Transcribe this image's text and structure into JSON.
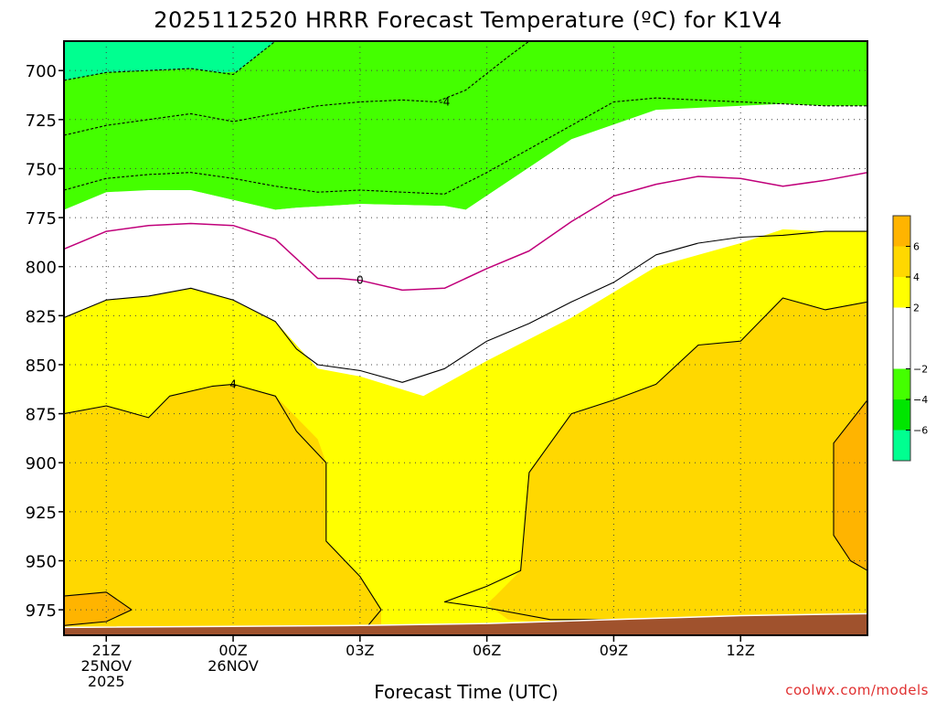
{
  "title": "2025112520 HRRR Forecast Temperature (ºC) for K1V4",
  "credit": "coolwx.com/models",
  "chart_data": {
    "type": "heatmap",
    "title": "2025112520 HRRR Forecast Temperature (ºC) for K1V4",
    "xlabel": "Forecast Time (UTC)",
    "ylabel": "",
    "x_range_hours": [
      -1,
      18
    ],
    "y_range_hpa": [
      685,
      988
    ],
    "y_reversed": true,
    "grid": true,
    "legend": "colorbar-right",
    "x_ticks": [
      {
        "hour": 0,
        "lines": [
          "21Z",
          "25NOV",
          "2025"
        ]
      },
      {
        "hour": 3,
        "lines": [
          "00Z",
          "26NOV"
        ]
      },
      {
        "hour": 6,
        "lines": [
          "03Z"
        ]
      },
      {
        "hour": 9,
        "lines": [
          "06Z"
        ]
      },
      {
        "hour": 12,
        "lines": [
          "09Z"
        ]
      },
      {
        "hour": 15,
        "lines": [
          "12Z"
        ]
      }
    ],
    "y_ticks": [
      700,
      725,
      750,
      775,
      800,
      825,
      850,
      875,
      900,
      925,
      950,
      975
    ],
    "colorbar": {
      "levels": [
        -8,
        -6,
        -4,
        -2,
        2,
        4,
        6,
        8
      ],
      "tick_labels": [
        "6",
        "4",
        "2",
        "−2",
        "−4",
        "−6"
      ],
      "tick_values": [
        6,
        4,
        2,
        -2,
        -4,
        -6
      ],
      "colors": [
        {
          "range": [
            -8,
            -6
          ],
          "color": "#00ff90"
        },
        {
          "range": [
            -6,
            -4
          ],
          "color": "#00e600"
        },
        {
          "range": [
            -4,
            -2
          ],
          "color": "#44ff00"
        },
        {
          "range": [
            -2,
            2
          ],
          "color": "#ffffff"
        },
        {
          "range": [
            2,
            4
          ],
          "color": "#ffff00"
        },
        {
          "range": [
            4,
            6
          ],
          "color": "#ffd800"
        },
        {
          "range": [
            6,
            8
          ],
          "color": "#ffb400"
        }
      ]
    },
    "contour_labels": [
      {
        "text": "-4",
        "hour": 8.0,
        "p": 716
      },
      {
        "text": "0",
        "hour": 6.0,
        "p": 807
      },
      {
        "text": "4",
        "hour": 3.0,
        "p": 860
      }
    ],
    "regions": [
      {
        "name": "cold-6-to-8",
        "color": "#00ff90",
        "points": [
          [
            -1,
            685
          ],
          [
            4.0,
            685
          ],
          [
            3.0,
            702
          ],
          [
            2.0,
            699
          ],
          [
            0,
            701
          ],
          [
            -1,
            705
          ]
        ]
      },
      {
        "name": "cold-4-to-6",
        "color": "#44ff00",
        "points": [
          [
            -1,
            705
          ],
          [
            0,
            701
          ],
          [
            2.0,
            699
          ],
          [
            3.0,
            702
          ],
          [
            4.0,
            685
          ],
          [
            17.0,
            685
          ],
          [
            16.0,
            688
          ],
          [
            15.0,
            686
          ],
          [
            14.0,
            687
          ],
          [
            13.0,
            686
          ],
          [
            17.0,
            685
          ],
          [
            18,
            685
          ],
          [
            18,
            718
          ],
          [
            17,
            718
          ],
          [
            16,
            717
          ],
          [
            15,
            718
          ],
          [
            13,
            720
          ],
          [
            11.0,
            735
          ],
          [
            8.5,
            771
          ],
          [
            8.0,
            769
          ],
          [
            6.0,
            768
          ],
          [
            4.5,
            770
          ],
          [
            4.0,
            771
          ],
          [
            3.0,
            766
          ],
          [
            2.0,
            761
          ],
          [
            1.0,
            761
          ],
          [
            0,
            762
          ],
          [
            -1,
            771
          ]
        ]
      },
      {
        "name": "cold-2-to-4",
        "color": "#44ff00",
        "points": [
          [
            -1,
            705
          ],
          [
            18,
            685
          ],
          [
            18,
            718
          ],
          [
            -1,
            771
          ]
        ]
      },
      {
        "name": "neutral",
        "color": "#ffffff",
        "points": [
          [
            -1,
            771
          ],
          [
            0,
            762
          ],
          [
            1.0,
            761
          ],
          [
            2.0,
            761
          ],
          [
            3.0,
            766
          ],
          [
            4.0,
            771
          ],
          [
            4.5,
            770
          ],
          [
            6.0,
            768
          ],
          [
            8.0,
            769
          ],
          [
            8.5,
            771
          ],
          [
            11.0,
            735
          ],
          [
            13,
            720
          ],
          [
            15,
            718
          ],
          [
            16,
            717
          ],
          [
            17,
            718
          ],
          [
            18,
            718
          ],
          [
            18,
            782
          ],
          [
            17,
            782
          ],
          [
            16,
            781
          ],
          [
            15,
            788
          ],
          [
            13,
            800
          ],
          [
            11.0,
            826
          ],
          [
            9.0,
            848
          ],
          [
            7.5,
            866
          ],
          [
            6.0,
            856
          ],
          [
            4.0,
            851
          ],
          [
            3.0,
            844
          ],
          [
            2.0,
            828
          ],
          [
            1.0,
            815
          ],
          [
            0,
            817
          ],
          [
            -1,
            826
          ]
        ]
      },
      {
        "name": "warm-2-to-4",
        "color": "#ffff00",
        "points": [
          [
            -1,
            826
          ],
          [
            0,
            817
          ],
          [
            1.0,
            815
          ],
          [
            2.0,
            811
          ],
          [
            3.0,
            817
          ],
          [
            4.0,
            828
          ],
          [
            5.0,
            852
          ],
          [
            6.0,
            856
          ],
          [
            7.5,
            866
          ],
          [
            9.0,
            848
          ],
          [
            11.0,
            826
          ],
          [
            13,
            800
          ],
          [
            15,
            788
          ],
          [
            16,
            781
          ],
          [
            17,
            782
          ],
          [
            18,
            782
          ],
          [
            18,
            988
          ],
          [
            -1,
            988
          ]
        ]
      },
      {
        "name": "warm-4-to-6-left",
        "color": "#ffd800",
        "points": [
          [
            -1,
            875
          ],
          [
            0,
            871
          ],
          [
            1.0,
            877
          ],
          [
            1.5,
            866
          ],
          [
            2.5,
            861
          ],
          [
            3.0,
            860
          ],
          [
            4.0,
            866
          ],
          [
            5.0,
            888
          ],
          [
            5.2,
            900
          ],
          [
            5.2,
            940
          ],
          [
            6.0,
            958
          ],
          [
            6.5,
            975
          ],
          [
            6.5,
            988
          ],
          [
            -1,
            988
          ]
        ]
      },
      {
        "name": "warm-4-to-6-right",
        "color": "#ffd800",
        "points": [
          [
            18,
            818
          ],
          [
            17,
            822
          ],
          [
            16.0,
            816
          ],
          [
            15.0,
            838
          ],
          [
            14.0,
            840
          ],
          [
            13.0,
            860
          ],
          [
            12.0,
            868
          ],
          [
            11.0,
            875
          ],
          [
            10.0,
            905
          ],
          [
            9.8,
            955
          ],
          [
            9.2,
            968
          ],
          [
            9.0,
            972
          ],
          [
            9.5,
            980
          ],
          [
            10.5,
            982
          ],
          [
            12.0,
            980
          ],
          [
            12.8,
            982
          ],
          [
            14.5,
            985
          ],
          [
            18,
            985
          ]
        ]
      },
      {
        "name": "warm-6-to-8-right",
        "color": "#ffb400",
        "points": [
          [
            18,
            868
          ],
          [
            17.2,
            890
          ],
          [
            17.2,
            937
          ],
          [
            17.6,
            950
          ],
          [
            18,
            955
          ]
        ]
      },
      {
        "name": "warm-6-to-8-left",
        "color": "#ffb400",
        "points": [
          [
            -1,
            968
          ],
          [
            0,
            966
          ],
          [
            0.6,
            975
          ],
          [
            0,
            981
          ],
          [
            -1,
            983
          ]
        ]
      }
    ],
    "contours": [
      {
        "value": -4,
        "color": "#000000",
        "dashed": true,
        "points": [
          [
            -1,
            705
          ],
          [
            0,
            701
          ],
          [
            2.0,
            699
          ],
          [
            3.0,
            702
          ],
          [
            4.0,
            685
          ]
        ]
      },
      {
        "value": -4,
        "color": "#000000",
        "dashed": true,
        "points": [
          [
            -1,
            733
          ],
          [
            0,
            728
          ],
          [
            1.0,
            725
          ],
          [
            2.0,
            722
          ],
          [
            3.0,
            726
          ],
          [
            4.0,
            722
          ],
          [
            5.0,
            718
          ],
          [
            6.0,
            716
          ],
          [
            7.0,
            715
          ],
          [
            7.8,
            716
          ],
          [
            8.5,
            710
          ],
          [
            9.5,
            693
          ],
          [
            10.0,
            685
          ]
        ]
      },
      {
        "value": -2,
        "color": "#000000",
        "dashed": true,
        "points": [
          [
            -1,
            761
          ],
          [
            0,
            755
          ],
          [
            1.0,
            753
          ],
          [
            2.0,
            752
          ],
          [
            3.0,
            755
          ],
          [
            4.0,
            759
          ],
          [
            5.0,
            762
          ],
          [
            6.0,
            761
          ],
          [
            7.0,
            762
          ],
          [
            8.0,
            763
          ],
          [
            9.0,
            752
          ],
          [
            10.0,
            740
          ],
          [
            11.0,
            728
          ],
          [
            12.0,
            716
          ],
          [
            13.0,
            714
          ],
          [
            14.0,
            715
          ],
          [
            15.0,
            716
          ],
          [
            16,
            717
          ],
          [
            17,
            718
          ],
          [
            18,
            718
          ]
        ]
      },
      {
        "value": 0,
        "color": "#c0007a",
        "dashed": false,
        "points": [
          [
            -1,
            791
          ],
          [
            0,
            782
          ],
          [
            1.0,
            779
          ],
          [
            2.0,
            778
          ],
          [
            3.0,
            779
          ],
          [
            4.0,
            786
          ],
          [
            5.0,
            806
          ],
          [
            5.5,
            806
          ],
          [
            6.0,
            807
          ],
          [
            7.0,
            812
          ],
          [
            8.0,
            811
          ],
          [
            9.0,
            801
          ],
          [
            10.0,
            792
          ],
          [
            11.0,
            777
          ],
          [
            12.0,
            764
          ],
          [
            13.0,
            758
          ],
          [
            14.0,
            754
          ],
          [
            15.0,
            755
          ],
          [
            16.0,
            759
          ],
          [
            17.0,
            756
          ],
          [
            18.0,
            752
          ]
        ]
      },
      {
        "value": 2,
        "color": "#000000",
        "dashed": false,
        "points": [
          [
            -1,
            826
          ],
          [
            0,
            817
          ],
          [
            1.0,
            815
          ],
          [
            2.0,
            811
          ],
          [
            3.0,
            817
          ],
          [
            4.0,
            828
          ],
          [
            4.5,
            842
          ],
          [
            5.0,
            850
          ],
          [
            6.0,
            853
          ],
          [
            7.0,
            859
          ],
          [
            8.0,
            852
          ],
          [
            9.0,
            838
          ],
          [
            10.0,
            829
          ],
          [
            11.0,
            818
          ],
          [
            12.0,
            808
          ],
          [
            13.0,
            794
          ],
          [
            14.0,
            788
          ],
          [
            15.0,
            785
          ],
          [
            16.0,
            784
          ],
          [
            17.0,
            782
          ],
          [
            18.0,
            782
          ]
        ]
      },
      {
        "value": 4,
        "color": "#000000",
        "dashed": false,
        "points": [
          [
            -1,
            875
          ],
          [
            0,
            871
          ],
          [
            1.0,
            877
          ],
          [
            1.5,
            866
          ],
          [
            2.5,
            861
          ],
          [
            3.0,
            860
          ],
          [
            4.0,
            866
          ],
          [
            4.5,
            884
          ],
          [
            5.2,
            900
          ],
          [
            5.2,
            940
          ],
          [
            6.0,
            958
          ],
          [
            6.5,
            975
          ],
          [
            6.0,
            988
          ]
        ]
      },
      {
        "value": 4,
        "color": "#000000",
        "dashed": false,
        "points": [
          [
            18,
            818
          ],
          [
            17,
            822
          ],
          [
            16.0,
            816
          ],
          [
            15.0,
            838
          ],
          [
            14.0,
            840
          ],
          [
            13.0,
            860
          ],
          [
            12.0,
            868
          ],
          [
            11.0,
            875
          ],
          [
            10.0,
            905
          ],
          [
            9.8,
            955
          ],
          [
            9.0,
            963
          ],
          [
            8.0,
            971
          ],
          [
            9.0,
            974
          ],
          [
            10.5,
            980
          ],
          [
            12.0,
            980
          ],
          [
            12.8,
            982
          ],
          [
            14.0,
            983
          ]
        ]
      },
      {
        "value": 6,
        "color": "#000000",
        "dashed": false,
        "points": [
          [
            18,
            868
          ],
          [
            17.2,
            890
          ],
          [
            17.2,
            937
          ],
          [
            17.6,
            950
          ],
          [
            18,
            955
          ]
        ]
      },
      {
        "value": 6,
        "color": "#000000",
        "dashed": false,
        "points": [
          [
            -1,
            968
          ],
          [
            0,
            966
          ],
          [
            0.6,
            975
          ],
          [
            0,
            981
          ],
          [
            -1,
            983
          ]
        ]
      }
    ],
    "ground": {
      "color": "#a0522d",
      "top_points": [
        [
          -1,
          984
        ],
        [
          6.0,
          983
        ],
        [
          9.0,
          982
        ],
        [
          12.0,
          980
        ],
        [
          15.0,
          978
        ],
        [
          18,
          977
        ]
      ],
      "bottom_p": 988
    }
  }
}
